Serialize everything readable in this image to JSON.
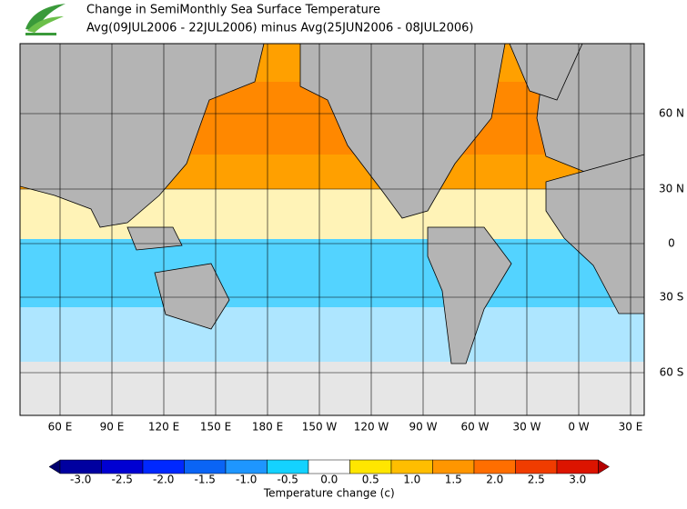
{
  "header": {
    "title": "Change in SemiMonthly Sea Surface Temperature",
    "subtitle": "Avg(09JUL2006 - 22JUL2006) minus Avg(25JUN2006 - 08JUL2006)"
  },
  "map": {
    "longitude_labels": [
      "60 E",
      "90 E",
      "120 E",
      "150 E",
      "180 E",
      "150 W",
      "120 W",
      "90 W",
      "60 W",
      "30 W",
      "0 W",
      "30 E"
    ],
    "latitude_labels": [
      "60 N",
      "30 N",
      "0",
      "30 S",
      "60 S"
    ]
  },
  "colorbar": {
    "title": "Temperature change  (c)",
    "low_color": "#00006e",
    "high_color": "#b40000",
    "items": [
      {
        "label": "-3.0",
        "color": "#0000a0"
      },
      {
        "label": "-2.5",
        "color": "#0000d2"
      },
      {
        "label": "-2.0",
        "color": "#0028ff"
      },
      {
        "label": "-1.5",
        "color": "#0a64f5"
      },
      {
        "label": "-1.0",
        "color": "#1e96ff"
      },
      {
        "label": "-0.5",
        "color": "#14d2ff"
      },
      {
        "label": "0.0",
        "color": "#ffffff"
      },
      {
        "label": "0.5",
        "color": "#ffe600"
      },
      {
        "label": "1.0",
        "color": "#ffbe00"
      },
      {
        "label": "1.5",
        "color": "#ff9600"
      },
      {
        "label": "2.0",
        "color": "#ff6e00"
      },
      {
        "label": "2.5",
        "color": "#f03c00"
      },
      {
        "label": "3.0",
        "color": "#dc1400"
      }
    ]
  }
}
